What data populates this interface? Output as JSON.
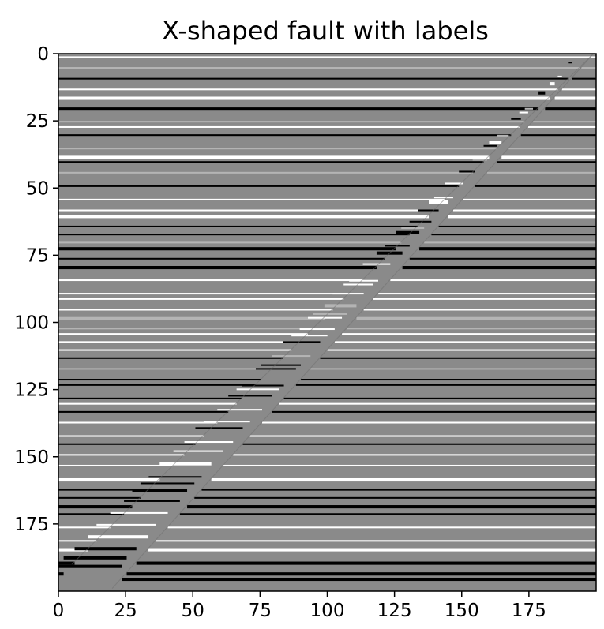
{
  "chart_data": {
    "type": "heatmap",
    "title": "X-shaped fault with labels",
    "xlabel": "",
    "ylabel": "",
    "xlim": [
      0,
      199
    ],
    "ylim": [
      199,
      0
    ],
    "grid": false,
    "colormap": "gray",
    "x_ticks": [
      0,
      25,
      50,
      75,
      100,
      125,
      150,
      175
    ],
    "y_ticks": [
      0,
      25,
      50,
      75,
      100,
      125,
      150,
      175
    ],
    "image_size": [
      200,
      200
    ],
    "faults": [
      {
        "name": "",
        "direction": "normal",
        "top": [
          199,
          0
        ],
        "bottom": [
          20,
          199
        ]
      },
      {
        "name": "",
        "direction": "reverse",
        "top": [
          5,
          190
        ],
        "bottom": [
          199,
          0
        ]
      }
    ],
    "layer_offsets_approx": [
      0,
      0
    ],
    "colors": {
      "background": "#ffffff",
      "mid_gray": "#8a8a8a",
      "dark": "#000000",
      "light": "#ffffff"
    }
  }
}
